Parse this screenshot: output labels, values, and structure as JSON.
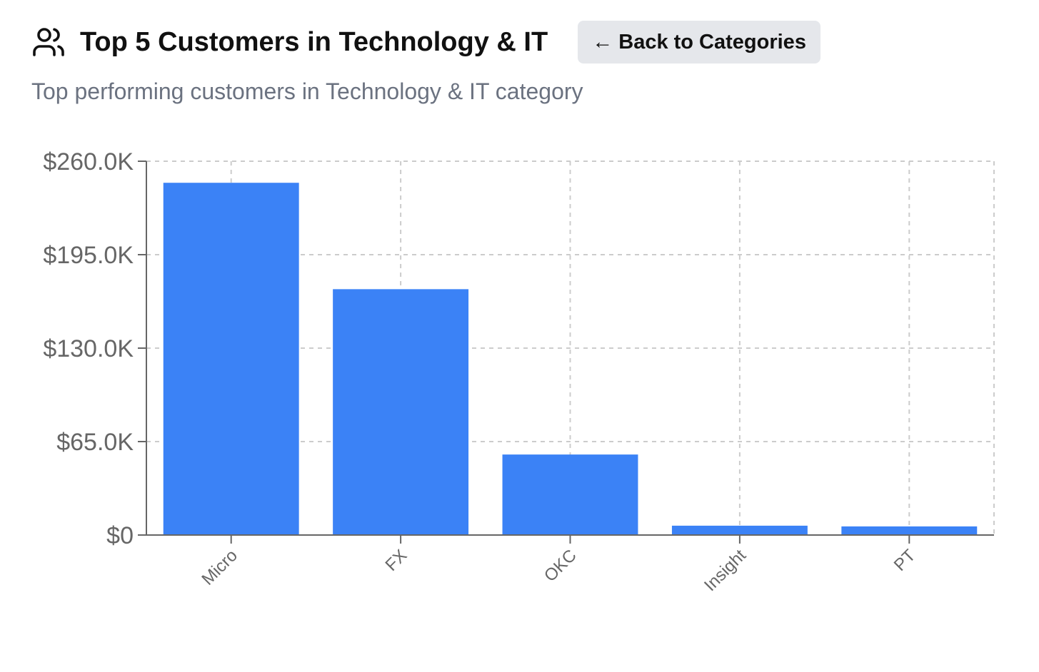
{
  "header": {
    "title": "Top 5 Customers in Technology & IT",
    "icon": "users-icon",
    "back_label": "← Back to Categories",
    "subtitle": "Top performing customers in Technology & IT category"
  },
  "colors": {
    "bar": "#3b82f6",
    "grid": "#cccccc",
    "axis": "#666666",
    "button_bg": "#e5e7eb"
  },
  "chart_data": {
    "type": "bar",
    "categories": [
      "Micro",
      "FX",
      "OKC",
      "Insight",
      "PT"
    ],
    "values": [
      245000,
      171000,
      56000,
      6500,
      6000
    ],
    "ylim": [
      0,
      260000
    ],
    "yticks": [
      0,
      65000,
      130000,
      195000,
      260000
    ],
    "ytick_labels": [
      "$0",
      "$65.0K",
      "$130.0K",
      "$195.0K",
      "$260.0K"
    ],
    "grid": true,
    "legend": false
  }
}
